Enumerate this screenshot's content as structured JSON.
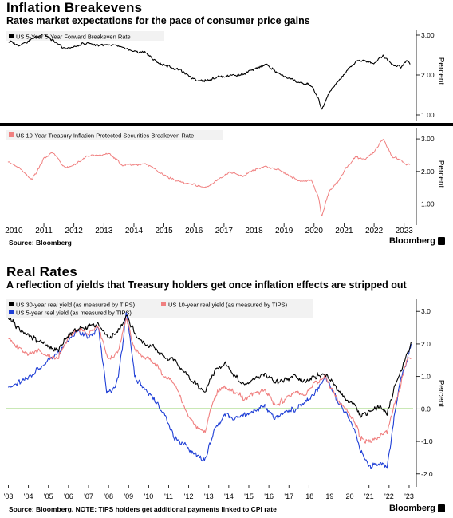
{
  "colors": {
    "black_series": "#000000",
    "pink_series": "#f08080",
    "blue_series": "#1f3fd6",
    "zero_line": "#6fc23a",
    "divider": "#000000"
  },
  "breakevens": {
    "title": "Inflation Breakevens",
    "subtitle": "Rates market expectations for the pace of consumer price gains",
    "source": "Source: Bloomberg",
    "brand": "Bloomberg"
  },
  "real_rates": {
    "title": "Real Rates",
    "subtitle": "A reflection of yields that Treasury holders get once inflation effects are stripped out",
    "source": "Source: Bloomberg. NOTE: TIPS holders get additional payments linked to CPI rate",
    "brand": "Bloomberg"
  },
  "chart_data": [
    {
      "type": "line",
      "ylabel": "Percent",
      "ylim": [
        1.0,
        3.0
      ],
      "yticks": [
        "3.00",
        "2.00",
        "1.00"
      ],
      "ytick_values": [
        3.0,
        2.0,
        1.0
      ],
      "xlim": [
        2009.75,
        2023.3
      ],
      "grid": false,
      "legend": "top-left",
      "series": [
        {
          "name": "US 5-Year 5-Year Forward Breakeven Rate",
          "color": "#000000",
          "x": [
            2009.8,
            2010.2,
            2010.6,
            2011.0,
            2011.3,
            2011.7,
            2012.0,
            2012.4,
            2012.8,
            2013.2,
            2013.6,
            2014.0,
            2014.4,
            2014.8,
            2015.2,
            2015.6,
            2016.0,
            2016.4,
            2016.8,
            2017.2,
            2017.6,
            2018.0,
            2018.4,
            2018.8,
            2019.2,
            2019.6,
            2019.9,
            2020.15,
            2020.25,
            2020.5,
            2020.8,
            2021.1,
            2021.4,
            2021.7,
            2022.0,
            2022.3,
            2022.6,
            2022.9,
            2023.1,
            2023.2
          ],
          "y": [
            2.85,
            2.75,
            2.9,
            3.05,
            2.85,
            2.65,
            2.7,
            2.8,
            2.75,
            2.75,
            2.7,
            2.6,
            2.55,
            2.3,
            2.2,
            2.1,
            1.9,
            1.85,
            1.95,
            2.0,
            2.0,
            2.15,
            2.25,
            2.05,
            1.9,
            1.8,
            1.75,
            1.4,
            1.1,
            1.55,
            1.85,
            2.1,
            2.35,
            2.35,
            2.3,
            2.5,
            2.25,
            2.2,
            2.35,
            2.3
          ]
        }
      ]
    },
    {
      "type": "line",
      "ylabel": "Percent",
      "ylim": [
        0.5,
        3.1
      ],
      "yticks": [
        "3.00",
        "2.00",
        "1.00"
      ],
      "ytick_values": [
        3.0,
        2.0,
        1.0
      ],
      "xticks": [
        "2010",
        "2011",
        "2012",
        "2013",
        "2014",
        "2015",
        "2016",
        "2017",
        "2018",
        "2019",
        "2020",
        "2021",
        "2022",
        "2023"
      ],
      "xtick_values": [
        2010,
        2011,
        2012,
        2013,
        2014,
        2015,
        2016,
        2017,
        2018,
        2019,
        2020,
        2021,
        2022,
        2023
      ],
      "xlim": [
        2009.75,
        2023.3
      ],
      "grid": false,
      "legend": "top-left",
      "series": [
        {
          "name": "US 10-Year Treasury Inflation Protected Securities Breakeven Rate",
          "color": "#f08080",
          "x": [
            2009.8,
            2010.2,
            2010.6,
            2011.0,
            2011.3,
            2011.7,
            2012.0,
            2012.4,
            2012.8,
            2013.2,
            2013.6,
            2014.0,
            2014.4,
            2014.8,
            2015.2,
            2015.6,
            2016.0,
            2016.4,
            2016.8,
            2017.2,
            2017.6,
            2018.0,
            2018.4,
            2018.8,
            2019.2,
            2019.6,
            2019.9,
            2020.15,
            2020.25,
            2020.5,
            2020.8,
            2021.1,
            2021.4,
            2021.7,
            2022.0,
            2022.3,
            2022.6,
            2022.9,
            2023.1,
            2023.2
          ],
          "y": [
            2.3,
            2.1,
            1.75,
            2.4,
            2.6,
            2.1,
            2.2,
            2.45,
            2.5,
            2.55,
            2.2,
            2.2,
            2.25,
            2.0,
            1.8,
            1.65,
            1.6,
            1.5,
            1.75,
            2.0,
            1.85,
            2.05,
            2.15,
            2.05,
            1.85,
            1.7,
            1.75,
            1.2,
            0.6,
            1.4,
            1.7,
            2.15,
            2.45,
            2.35,
            2.6,
            3.0,
            2.45,
            2.35,
            2.2,
            2.25
          ]
        }
      ]
    },
    {
      "type": "line",
      "ylabel": "Percent",
      "ylim": [
        -2.3,
        3.3
      ],
      "yticks": [
        "3.0",
        "2.0",
        "1.0",
        "0.0",
        "-1.0",
        "-2.0"
      ],
      "ytick_values": [
        3.0,
        2.0,
        1.0,
        0.0,
        -1.0,
        -2.0
      ],
      "xticks": [
        "'03",
        "'04",
        "'05",
        "'06",
        "'07",
        "'08",
        "'09",
        "'10",
        "'11",
        "'12",
        "'13",
        "'14",
        "'15",
        "'16",
        "'17",
        "'18",
        "'19",
        "'20",
        "'21",
        "'22",
        "'23"
      ],
      "xtick_values": [
        2003,
        2004,
        2005,
        2006,
        2007,
        2008,
        2009,
        2010,
        2011,
        2012,
        2013,
        2014,
        2015,
        2016,
        2017,
        2018,
        2019,
        2020,
        2021,
        2022,
        2023
      ],
      "xlim": [
        2002.9,
        2023.2
      ],
      "reference_line": 0.0,
      "grid": false,
      "legend": "top-left",
      "series": [
        {
          "name": "US 30-year real yield (as measured by TIPS)",
          "color": "#000000",
          "x": [
            2003.0,
            2003.5,
            2004.0,
            2004.5,
            2005.0,
            2005.5,
            2006.0,
            2006.5,
            2007.0,
            2007.5,
            2008.0,
            2008.5,
            2008.9,
            2009.3,
            2009.8,
            2010.3,
            2010.8,
            2011.3,
            2011.8,
            2012.3,
            2012.8,
            2013.3,
            2013.8,
            2014.3,
            2014.8,
            2015.3,
            2015.8,
            2016.3,
            2016.8,
            2017.3,
            2017.8,
            2018.3,
            2018.8,
            2019.3,
            2019.8,
            2020.2,
            2020.6,
            2021.0,
            2021.5,
            2021.9,
            2022.2,
            2022.6,
            2022.9,
            2023.1
          ],
          "y": [
            2.8,
            2.5,
            2.3,
            2.1,
            1.9,
            1.8,
            2.3,
            2.5,
            2.5,
            2.6,
            2.2,
            2.4,
            2.9,
            2.3,
            2.0,
            1.9,
            1.6,
            1.5,
            1.1,
            0.8,
            0.5,
            1.2,
            1.4,
            1.0,
            0.8,
            0.9,
            1.1,
            0.8,
            0.9,
            1.0,
            0.8,
            1.0,
            1.1,
            0.7,
            0.3,
            0.2,
            -0.2,
            -0.1,
            0.1,
            -0.2,
            0.5,
            1.2,
            1.7,
            2.0
          ]
        },
        {
          "name": "US 10-year real yield (as measured by TIPS)",
          "color": "#f08080",
          "x": [
            2003.0,
            2003.5,
            2004.0,
            2004.5,
            2005.0,
            2005.5,
            2006.0,
            2006.5,
            2007.0,
            2007.5,
            2008.0,
            2008.5,
            2008.9,
            2009.3,
            2009.8,
            2010.3,
            2010.8,
            2011.3,
            2011.8,
            2012.3,
            2012.8,
            2013.3,
            2013.8,
            2014.3,
            2014.8,
            2015.3,
            2015.8,
            2016.3,
            2016.8,
            2017.3,
            2017.8,
            2018.3,
            2018.8,
            2019.3,
            2019.8,
            2020.2,
            2020.6,
            2021.0,
            2021.5,
            2021.9,
            2022.2,
            2022.6,
            2022.9,
            2023.1
          ],
          "y": [
            2.2,
            1.9,
            1.7,
            1.8,
            1.6,
            1.6,
            2.2,
            2.5,
            2.3,
            2.5,
            1.5,
            1.8,
            2.8,
            1.8,
            1.6,
            1.4,
            1.0,
            0.8,
            0.0,
            -0.5,
            -0.7,
            0.4,
            0.7,
            0.5,
            0.3,
            0.5,
            0.6,
            0.1,
            0.3,
            0.5,
            0.4,
            0.8,
            1.0,
            0.4,
            0.0,
            -0.3,
            -0.9,
            -1.0,
            -0.9,
            -0.7,
            0.0,
            0.8,
            1.5,
            1.6
          ]
        },
        {
          "name": "US 5-year real yield (as measured by TIPS)",
          "color": "#1f3fd6",
          "x": [
            2003.0,
            2003.5,
            2004.0,
            2004.5,
            2005.0,
            2005.5,
            2006.0,
            2006.5,
            2007.0,
            2007.5,
            2007.9,
            2008.3,
            2008.5,
            2008.9,
            2009.3,
            2009.8,
            2010.3,
            2010.8,
            2011.3,
            2011.8,
            2012.3,
            2012.8,
            2013.3,
            2013.8,
            2014.3,
            2014.8,
            2015.3,
            2015.8,
            2016.3,
            2016.8,
            2017.3,
            2017.8,
            2018.3,
            2018.8,
            2019.3,
            2019.8,
            2020.2,
            2020.6,
            2021.0,
            2021.5,
            2021.9,
            2022.2,
            2022.6,
            2022.9,
            2023.1
          ],
          "y": [
            0.7,
            0.8,
            1.0,
            1.2,
            1.5,
            1.7,
            2.1,
            2.4,
            2.2,
            2.5,
            0.5,
            0.6,
            1.0,
            3.0,
            1.0,
            0.6,
            0.3,
            -0.2,
            -0.9,
            -1.1,
            -1.4,
            -1.6,
            -0.6,
            -0.2,
            -0.3,
            -0.2,
            0.0,
            0.1,
            -0.3,
            -0.1,
            0.0,
            0.2,
            0.5,
            1.0,
            0.4,
            -0.1,
            -0.5,
            -1.3,
            -1.8,
            -1.7,
            -1.8,
            -0.5,
            1.0,
            1.5,
            2.0
          ]
        }
      ]
    }
  ]
}
